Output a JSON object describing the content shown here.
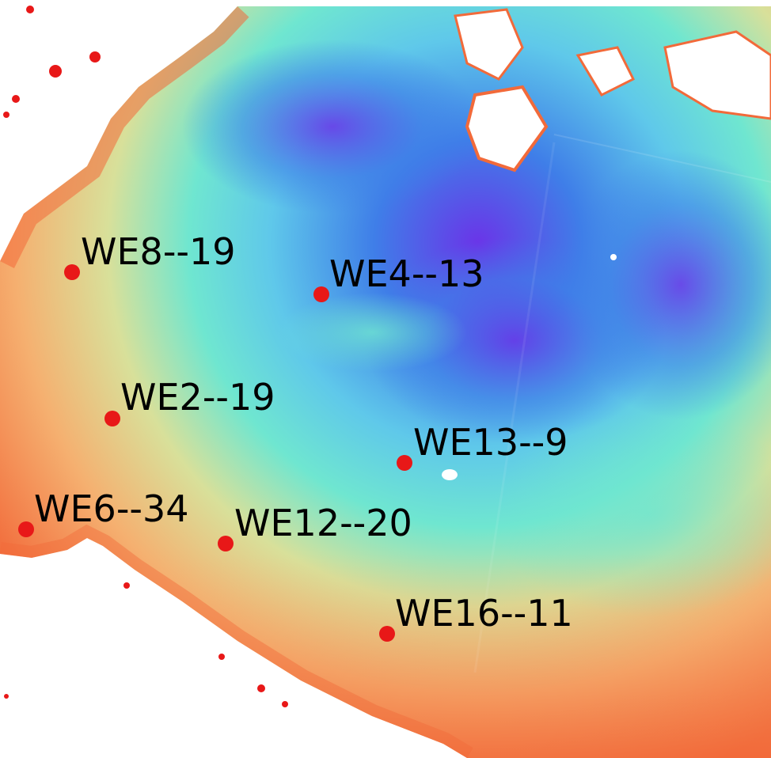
{
  "map": {
    "colors": {
      "land": "#ffffff",
      "nearshore": "#f26a3a",
      "shallow": "#f5b070",
      "mid": "#d8e09a",
      "open": "#6fe6d0",
      "deep": "#3f7ee8",
      "deepest": "#6a35e8",
      "marker": "#e81818",
      "label": "#000000"
    },
    "stations": [
      {
        "id": "WE8",
        "label": "WE8--19"
      },
      {
        "id": "WE4",
        "label": "WE4--13"
      },
      {
        "id": "WE2",
        "label": "WE2--19"
      },
      {
        "id": "WE13",
        "label": "WE13--9"
      },
      {
        "id": "WE6",
        "label": "WE6--34"
      },
      {
        "id": "WE12",
        "label": "WE12--20"
      },
      {
        "id": "WE16",
        "label": "WE16--11"
      }
    ]
  }
}
